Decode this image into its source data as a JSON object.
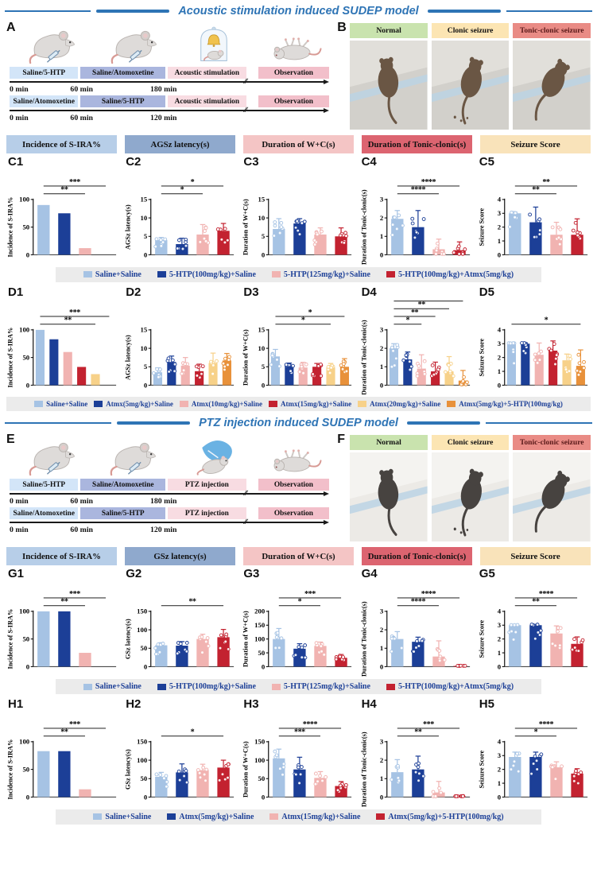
{
  "colors": {
    "series": [
      "#a6c3e4",
      "#1c3f97",
      "#f1b3b1",
      "#c32230",
      "#f7d189",
      "#e8913a"
    ],
    "title_blue": "#2e74b5",
    "legend_bg": "#ebebeb",
    "header_bgs": [
      "#b7cee8",
      "#8fa9cd",
      "#f4c5c5",
      "#dc6470",
      "#f9e3ba"
    ],
    "photo_header_bgs": [
      "#c9e3ae",
      "#fce5b3",
      "#e98b85"
    ],
    "timeline_box_bgs": [
      "#d3e5f8",
      "#aab6de",
      "#f8dce2",
      "#f2bfca"
    ]
  },
  "sections": [
    {
      "title": "Acoustic stimulation induced SUDEP model",
      "diagram": {
        "label": "A",
        "mice": [
          "inject",
          "inject",
          "acoustic",
          "supine"
        ],
        "rows": [
          {
            "boxes": [
              "Saline/5-HTP",
              "Saline/Atomoxetine",
              "Acoustic stimulation",
              "Observation"
            ],
            "times": [
              "0 min",
              "60 min",
              "180 min"
            ]
          },
          {
            "boxes": [
              "Saline/Atomoxetine",
              "Saline/5-HTP",
              "Acoustic stimulation",
              "Observation"
            ],
            "times": [
              "0 min",
              "60 min",
              "120 min"
            ]
          }
        ]
      },
      "photos": {
        "label": "B",
        "tone": "dark",
        "items": [
          "Normal",
          "Clonic seizure",
          "Tonic-clonic seizure"
        ]
      },
      "column_headers": [
        "Incidence of S-IRA%",
        "AGSz latency(s)",
        "Duration of W+C(s)",
        "Duration of Tonic-clonic(s)",
        "Seizure Score"
      ],
      "chart_rows": [
        {
          "charts": [
            "C1",
            "C2",
            "C3",
            "C4",
            "C5"
          ],
          "legend": [
            {
              "label": "Saline+Saline",
              "color": 0
            },
            {
              "label": "5-HTP(100mg/kg)+Saline",
              "color": 1
            },
            {
              "label": "5-HTP(125mg/kg)+Saline",
              "color": 2
            },
            {
              "label": "5-HTP(100mg/kg)+Atmx(5mg/kg)",
              "color": 3
            }
          ]
        },
        {
          "charts": [
            "D1",
            "D2",
            "D3",
            "D4",
            "D5"
          ],
          "legend": [
            {
              "label": "Saline+Saline",
              "color": 0
            },
            {
              "label": "Atmx(5mg/kg)+Saline",
              "color": 1
            },
            {
              "label": "Atmx(10mg/kg)+Saline",
              "color": 2
            },
            {
              "label": "Atmx(15mg/kg)+Saline",
              "color": 3
            },
            {
              "label": "Atmx(20mg/kg)+Saline",
              "color": 4
            },
            {
              "label": "Atmx(5mg/kg)+5-HTP(100mg/kg)",
              "color": 5
            }
          ]
        }
      ]
    },
    {
      "title": "PTZ injection induced SUDEP model",
      "diagram": {
        "label": "E",
        "mice": [
          "inject",
          "inject",
          "ptz",
          "supine"
        ],
        "rows": [
          {
            "boxes": [
              "Saline/5-HTP",
              "Saline/Atomoxetine",
              "PTZ injection",
              "Observation"
            ],
            "times": [
              "0 min",
              "60 min",
              "180 min"
            ]
          },
          {
            "boxes": [
              "Saline/Atomoxetine",
              "Saline/5-HTP",
              "PTZ injection",
              "Observation"
            ],
            "times": [
              "0 min",
              "60 min",
              "120 min"
            ]
          }
        ]
      },
      "photos": {
        "label": "F",
        "tone": "light",
        "items": [
          "Normal",
          "Clonic seizure",
          "Tonic-clonic seizure"
        ]
      },
      "column_headers": [
        "Incidence of S-IRA%",
        "GSz latency(s)",
        "Duration of W+C(s)",
        "Duration of Tonic-clonic(s)",
        "Seizure Score"
      ],
      "chart_rows": [
        {
          "charts": [
            "G1",
            "G2",
            "G3",
            "G4",
            "G5"
          ],
          "legend": [
            {
              "label": "Saline+Saline",
              "color": 0
            },
            {
              "label": "5-HTP(100mg/kg)+Saline",
              "color": 1
            },
            {
              "label": "5-HTP(125mg/kg)+Saline",
              "color": 2
            },
            {
              "label": "5-HTP(100mg/kg)+Atmx(5mg/kg)",
              "color": 3
            }
          ]
        },
        {
          "charts": [
            "H1",
            "H2",
            "H3",
            "H4",
            "H5"
          ],
          "legend": [
            {
              "label": "Saline+Saline",
              "color": 0
            },
            {
              "label": "Atmx(5mg/kg)+Saline",
              "color": 1
            },
            {
              "label": "Atmx(15mg/kg)+Saline",
              "color": 2
            },
            {
              "label": "Atmx(5mg/kg)+5-HTP(100mg/kg)",
              "color": 3
            }
          ]
        }
      ]
    }
  ],
  "chart_data": {
    "type": "bar",
    "charts": [
      {
        "id": "C1",
        "ylabel": "Incidence of S-IRA%",
        "ymax": 100,
        "yticks": [
          0,
          50,
          100
        ],
        "values": [
          90,
          75,
          12,
          0
        ],
        "colors": [
          0,
          1,
          2,
          3
        ],
        "errors": null,
        "points": false,
        "sig": [
          {
            "a": 0,
            "b": 2,
            "s": "**"
          },
          {
            "a": 0,
            "b": 3,
            "s": "***"
          }
        ]
      },
      {
        "id": "C2",
        "ylabel": "AGSz latency(s)",
        "ymax": 15,
        "yticks": [
          0,
          5,
          10,
          15
        ],
        "values": [
          4,
          2.9,
          5.5,
          6.5
        ],
        "colors": [
          0,
          1,
          2,
          3
        ],
        "errors": [
          0.7,
          1.6,
          2.7,
          2.0
        ],
        "points": true,
        "sig": [
          {
            "a": 0,
            "b": 2,
            "s": "*"
          },
          {
            "a": 0,
            "b": 3,
            "s": "*"
          }
        ]
      },
      {
        "id": "C3",
        "ylabel": "Duration of W+C(s)",
        "ymax": 15,
        "yticks": [
          0,
          5,
          10,
          15
        ],
        "values": [
          7,
          8.5,
          5.5,
          5
        ],
        "colors": [
          0,
          1,
          2,
          3
        ],
        "errors": [
          2.8,
          1.3,
          1.8,
          2.3
        ],
        "points": true,
        "sig": []
      },
      {
        "id": "C4",
        "ylabel": "Duration of Tonic-clonic(s)",
        "ymax": 3,
        "yticks": [
          0,
          1,
          2,
          3
        ],
        "values": [
          1.95,
          1.5,
          0.3,
          0.25
        ],
        "colors": [
          0,
          1,
          2,
          3
        ],
        "errors": [
          0.45,
          0.9,
          0.55,
          0.45
        ],
        "points": true,
        "sig": [
          {
            "a": 0,
            "b": 2,
            "s": "****"
          },
          {
            "a": 0,
            "b": 3,
            "s": "****"
          }
        ]
      },
      {
        "id": "C5",
        "ylabel": "Seizure Score",
        "ymax": 4,
        "yticks": [
          0,
          1,
          2,
          3,
          4
        ],
        "values": [
          3,
          2.35,
          1.45,
          1.45
        ],
        "colors": [
          0,
          1,
          2,
          3
        ],
        "errors": [
          0.08,
          1.1,
          0.9,
          1.15
        ],
        "points": true,
        "sig": [
          {
            "a": 0,
            "b": 2,
            "s": "**"
          },
          {
            "a": 0,
            "b": 3,
            "s": "**"
          }
        ]
      },
      {
        "id": "D1",
        "ylabel": "Incidence of S-IRA%",
        "ymax": 100,
        "yticks": [
          0,
          50,
          100
        ],
        "values": [
          100,
          83,
          60,
          33,
          20,
          0
        ],
        "colors": [
          0,
          1,
          2,
          3,
          4,
          5
        ],
        "errors": null,
        "points": false,
        "sig": [
          {
            "a": 0,
            "b": 4,
            "s": "**"
          },
          {
            "a": 0,
            "b": 5,
            "s": "***"
          }
        ]
      },
      {
        "id": "D2",
        "ylabel": "AGSz latency(s)",
        "ymax": 15,
        "yticks": [
          0,
          5,
          10,
          15
        ],
        "values": [
          3.5,
          6.3,
          5.3,
          3.8,
          6.0,
          6.7
        ],
        "colors": [
          0,
          1,
          2,
          3,
          4,
          5
        ],
        "errors": [
          1.2,
          1.6,
          2.2,
          1.9,
          2.7,
          1.9
        ],
        "points": true,
        "sig": []
      },
      {
        "id": "D3",
        "ylabel": "Duration of W+C(s)",
        "ymax": 15,
        "yticks": [
          0,
          5,
          10,
          15
        ],
        "values": [
          7.8,
          5.2,
          4.8,
          5.0,
          4.8,
          5.0
        ],
        "colors": [
          0,
          1,
          2,
          3,
          4,
          5
        ],
        "errors": [
          1.9,
          0.8,
          1.4,
          0.9,
          1.1,
          2.2
        ],
        "points": true,
        "sig": [
          {
            "a": 0,
            "b": 4,
            "s": "*"
          },
          {
            "a": 0,
            "b": 5,
            "s": "*"
          }
        ]
      },
      {
        "id": "D4",
        "ylabel": "Duration of Tonic-clonic(s)",
        "ymax": 3,
        "yticks": [
          0,
          1,
          2,
          3
        ],
        "values": [
          2.0,
          1.4,
          0.9,
          0.75,
          0.75,
          0.25
        ],
        "colors": [
          0,
          1,
          2,
          3,
          4,
          5
        ],
        "errors": [
          0.25,
          0.4,
          0.75,
          0.5,
          0.8,
          0.55
        ],
        "points": true,
        "sig": [
          {
            "a": 0,
            "b": 2,
            "s": "*"
          },
          {
            "a": 0,
            "b": 3,
            "s": "**"
          },
          {
            "a": 0,
            "b": 4,
            "s": "**"
          },
          {
            "a": 0,
            "b": 5,
            "s": "****"
          }
        ]
      },
      {
        "id": "D5",
        "ylabel": "Seizure Score",
        "ymax": 4,
        "yticks": [
          0,
          1,
          2,
          3,
          4
        ],
        "values": [
          3,
          3,
          2.2,
          2.5,
          1.8,
          1.4
        ],
        "colors": [
          0,
          1,
          2,
          3,
          4,
          5
        ],
        "errors": [
          0.06,
          0.06,
          0.85,
          0.7,
          0.45,
          1.15
        ],
        "points": true,
        "sig": [
          {
            "a": 0,
            "b": 5,
            "s": "*"
          }
        ]
      },
      {
        "id": "G1",
        "ylabel": "Incidence of S-IRA%",
        "ymax": 100,
        "yticks": [
          0,
          50,
          100
        ],
        "values": [
          100,
          100,
          25,
          0
        ],
        "colors": [
          0,
          1,
          2,
          3
        ],
        "errors": null,
        "points": false,
        "sig": [
          {
            "a": 0,
            "b": 2,
            "s": "**"
          },
          {
            "a": 0,
            "b": 3,
            "s": "***"
          }
        ]
      },
      {
        "id": "G2",
        "ylabel": "GSz latency(s)",
        "ymax": 150,
        "yticks": [
          0,
          50,
          100,
          150
        ],
        "values": [
          58,
          57,
          75,
          80
        ],
        "colors": [
          0,
          1,
          2,
          3
        ],
        "errors": [
          7,
          11,
          13,
          21
        ],
        "points": true,
        "sig": [
          {
            "a": 0,
            "b": 3,
            "s": "**"
          }
        ]
      },
      {
        "id": "G3",
        "ylabel": "Duration of W+C(s)",
        "ymax": 200,
        "yticks": [
          0,
          50,
          100,
          150,
          200
        ],
        "values": [
          100,
          65,
          75,
          32
        ],
        "colors": [
          0,
          1,
          2,
          3
        ],
        "errors": [
          38,
          18,
          14,
          12
        ],
        "points": true,
        "sig": [
          {
            "a": 0,
            "b": 2,
            "s": "*"
          },
          {
            "a": 0,
            "b": 3,
            "s": "***"
          }
        ]
      },
      {
        "id": "G4",
        "ylabel": "Duration of Tonic-clonic(s)",
        "ymax": 3,
        "yticks": [
          0,
          1,
          2,
          3
        ],
        "values": [
          1.5,
          1.35,
          0.55,
          0.04
        ],
        "colors": [
          0,
          1,
          2,
          3
        ],
        "errors": [
          0.4,
          0.25,
          0.85,
          0.06
        ],
        "points": true,
        "sig": [
          {
            "a": 0,
            "b": 2,
            "s": "****"
          },
          {
            "a": 0,
            "b": 3,
            "s": "****"
          }
        ]
      },
      {
        "id": "G5",
        "ylabel": "Seizure Score",
        "ymax": 4,
        "yticks": [
          0,
          1,
          2,
          3,
          4
        ],
        "values": [
          3,
          3,
          2.4,
          1.65
        ],
        "colors": [
          0,
          1,
          2,
          3
        ],
        "errors": [
          0.06,
          0.06,
          0.55,
          0.5
        ],
        "points": true,
        "sig": [
          {
            "a": 0,
            "b": 2,
            "s": "**"
          },
          {
            "a": 0,
            "b": 3,
            "s": "****"
          }
        ]
      },
      {
        "id": "H1",
        "ylabel": "Incidence of S-IRA%",
        "ymax": 100,
        "yticks": [
          0,
          50,
          100
        ],
        "values": [
          83,
          83,
          14,
          0
        ],
        "colors": [
          0,
          1,
          2,
          3
        ],
        "errors": null,
        "points": false,
        "sig": [
          {
            "a": 0,
            "b": 2,
            "s": "**"
          },
          {
            "a": 0,
            "b": 3,
            "s": "***"
          }
        ]
      },
      {
        "id": "H2",
        "ylabel": "GSz latency(s)",
        "ymax": 150,
        "yticks": [
          0,
          50,
          100,
          150
        ],
        "values": [
          55,
          67,
          73,
          80
        ],
        "colors": [
          0,
          1,
          2,
          3
        ],
        "errors": [
          12,
          23,
          16,
          20
        ],
        "points": true,
        "sig": [
          {
            "a": 0,
            "b": 3,
            "s": "*"
          }
        ]
      },
      {
        "id": "H3",
        "ylabel": "Duration of W+C(s)",
        "ymax": 150,
        "yticks": [
          0,
          50,
          100,
          150
        ],
        "values": [
          105,
          75,
          52,
          30
        ],
        "colors": [
          0,
          1,
          2,
          3
        ],
        "errors": [
          25,
          33,
          17,
          12
        ],
        "points": true,
        "sig": [
          {
            "a": 0,
            "b": 2,
            "s": "***"
          },
          {
            "a": 0,
            "b": 3,
            "s": "****"
          }
        ]
      },
      {
        "id": "H4",
        "ylabel": "Duration of Tonic-clonic(s)",
        "ymax": 3,
        "yticks": [
          0,
          1,
          2,
          3
        ],
        "values": [
          1.35,
          1.5,
          0.25,
          0.04
        ],
        "colors": [
          0,
          1,
          2,
          3
        ],
        "errors": [
          0.68,
          0.72,
          0.6,
          0.05
        ],
        "points": true,
        "sig": [
          {
            "a": 0,
            "b": 2,
            "s": "**"
          },
          {
            "a": 0,
            "b": 3,
            "s": "***"
          }
        ]
      },
      {
        "id": "H5",
        "ylabel": "Seizure Score",
        "ymax": 4,
        "yticks": [
          0,
          1,
          2,
          3,
          4
        ],
        "values": [
          2.9,
          2.9,
          2.15,
          1.7
        ],
        "colors": [
          0,
          1,
          2,
          3
        ],
        "errors": [
          0.35,
          0.35,
          0.4,
          0.35
        ],
        "points": true,
        "sig": [
          {
            "a": 0,
            "b": 2,
            "s": "*"
          },
          {
            "a": 0,
            "b": 3,
            "s": "****"
          }
        ]
      }
    ]
  }
}
